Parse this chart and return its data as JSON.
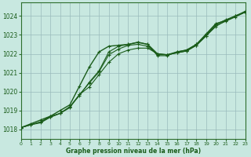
{
  "background_color": "#c8e8e0",
  "grid_color": "#99bbbb",
  "line_color": "#1a5c1a",
  "marker_color": "#1a5c1a",
  "xlabel": "Graphe pression niveau de la mer (hPa)",
  "ylim": [
    1017.5,
    1024.7
  ],
  "xlim": [
    0,
    23
  ],
  "yticks": [
    1018,
    1019,
    1020,
    1021,
    1022,
    1023,
    1024
  ],
  "xticks": [
    0,
    1,
    2,
    3,
    4,
    5,
    6,
    7,
    8,
    9,
    10,
    11,
    12,
    13,
    14,
    15,
    16,
    17,
    18,
    19,
    20,
    21,
    22,
    23
  ],
  "series": [
    {
      "x": [
        0,
        1,
        2,
        3,
        4,
        5,
        6,
        7,
        8,
        9,
        10,
        11,
        12,
        13,
        14,
        15,
        16,
        17,
        18,
        19,
        20,
        21,
        22,
        23
      ],
      "y": [
        1018.1,
        1018.3,
        1018.5,
        1018.7,
        1019.0,
        1019.3,
        1020.3,
        1021.3,
        1022.1,
        1022.4,
        1022.45,
        1022.5,
        1022.6,
        1022.5,
        1022.0,
        1021.95,
        1022.1,
        1022.2,
        1022.5,
        1023.05,
        1023.6,
        1023.75,
        1024.0,
        1024.2
      ],
      "marker": "+",
      "lw": 1.0
    },
    {
      "x": [
        0,
        1,
        2,
        3,
        4,
        5,
        6,
        7,
        8,
        9,
        10,
        11,
        12,
        13,
        14,
        15,
        16,
        17,
        18,
        19,
        20,
        21,
        22,
        23
      ],
      "y": [
        1018.1,
        1018.25,
        1018.4,
        1018.7,
        1018.85,
        1019.2,
        1019.8,
        1020.5,
        1021.1,
        1022.1,
        1022.4,
        1022.5,
        1022.62,
        1022.5,
        1021.9,
        1021.9,
        1022.1,
        1022.2,
        1022.5,
        1023.0,
        1023.55,
        1023.8,
        1024.0,
        1024.25
      ],
      "marker": "+",
      "lw": 0.8
    },
    {
      "x": [
        0,
        2,
        3,
        4,
        5,
        6,
        7,
        8,
        9,
        10,
        11,
        12,
        13,
        14,
        15,
        16,
        17,
        18,
        19,
        20,
        21,
        22,
        23
      ],
      "y": [
        1018.1,
        1018.4,
        1018.65,
        1018.85,
        1019.15,
        1019.85,
        1020.25,
        1020.9,
        1021.55,
        1022.0,
        1022.2,
        1022.3,
        1022.3,
        1022.0,
        1021.95,
        1022.05,
        1022.15,
        1022.45,
        1022.95,
        1023.45,
        1023.75,
        1024.0,
        1024.2
      ],
      "marker": "+",
      "lw": 0.8
    },
    {
      "x": [
        0,
        1,
        2,
        3,
        4,
        5,
        6,
        7,
        8,
        9,
        10,
        11,
        12,
        13,
        14,
        15,
        16,
        17,
        18,
        19,
        20,
        21,
        22,
        23
      ],
      "y": [
        1018.1,
        1018.25,
        1018.35,
        1018.65,
        1018.85,
        1019.2,
        1019.85,
        1020.45,
        1021.05,
        1021.95,
        1022.25,
        1022.45,
        1022.5,
        1022.4,
        1021.95,
        1021.95,
        1022.05,
        1022.15,
        1022.45,
        1022.95,
        1023.5,
        1023.72,
        1023.95,
        1024.2
      ],
      "marker": "+",
      "lw": 0.8
    }
  ]
}
